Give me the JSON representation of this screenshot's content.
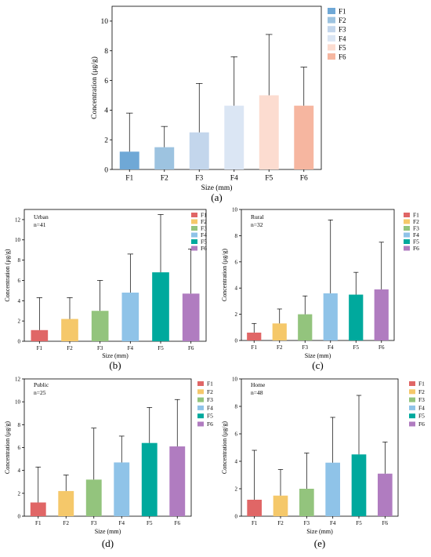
{
  "chart_data": [
    {
      "panel_label": "(a)",
      "type": "bar",
      "categories": [
        "F1",
        "F2",
        "F3",
        "F4",
        "F5",
        "F6"
      ],
      "values": [
        1.2,
        1.5,
        2.5,
        4.3,
        5.0,
        4.3
      ],
      "error_upper": [
        3.8,
        2.9,
        5.8,
        7.6,
        9.1,
        6.9
      ],
      "colors": [
        "#6fa8d6",
        "#9dc3e0",
        "#c3d6ec",
        "#dbe6f4",
        "#fcdcd0",
        "#f6b6a0"
      ],
      "legend": [
        "F1",
        "F2",
        "F3",
        "F4",
        "F5",
        "F6"
      ],
      "legend_position": "top-right",
      "annotation": "",
      "xlabel": "Size (mm)",
      "ylabel": "Concentration (μg/g)",
      "ylim": [
        0,
        11
      ],
      "yticks": [
        0,
        2,
        4,
        6,
        8,
        10
      ]
    },
    {
      "panel_label": "(b)",
      "type": "bar",
      "categories": [
        "F1",
        "F2",
        "F3",
        "F4",
        "F5",
        "F6"
      ],
      "values": [
        1.1,
        2.2,
        3.0,
        4.8,
        6.8,
        4.7
      ],
      "error_upper": [
        4.3,
        4.3,
        6.0,
        8.6,
        12.5,
        9.1
      ],
      "colors": [
        "#e06666",
        "#f5c86a",
        "#93c47d",
        "#8fc3e8",
        "#00a99d",
        "#b07cc0"
      ],
      "legend": [
        "F1",
        "F2",
        "F3",
        "F4",
        "F5",
        "F6"
      ],
      "legend_position": "top-right",
      "annotation": [
        "Urban",
        "n=41"
      ],
      "xlabel": "Size (mm)",
      "ylabel": "Concentration (μg/g)",
      "ylim": [
        0,
        13
      ],
      "yticks": [
        0,
        2,
        4,
        6,
        8,
        10,
        12
      ]
    },
    {
      "panel_label": "(c)",
      "type": "bar",
      "categories": [
        "F1",
        "F2",
        "F3",
        "F4",
        "F5",
        "F6"
      ],
      "values": [
        0.6,
        1.3,
        2.0,
        3.6,
        3.5,
        3.9
      ],
      "error_upper": [
        1.3,
        2.4,
        3.4,
        9.2,
        5.2,
        7.5
      ],
      "colors": [
        "#e06666",
        "#f5c86a",
        "#93c47d",
        "#8fc3e8",
        "#00a99d",
        "#b07cc0"
      ],
      "legend": [
        "F1",
        "F2",
        "F3",
        "F4",
        "F5",
        "F6"
      ],
      "legend_position": "top-right",
      "annotation": [
        "Rural",
        "n=32"
      ],
      "xlabel": "Size (mm)",
      "ylabel": "Concentration (μg/g)",
      "ylim": [
        0,
        10
      ],
      "yticks": [
        0,
        2,
        4,
        6,
        8,
        10
      ]
    },
    {
      "panel_label": "(d)",
      "type": "bar",
      "categories": [
        "F1",
        "F2",
        "F3",
        "F4",
        "F5",
        "F6"
      ],
      "values": [
        1.2,
        2.2,
        3.2,
        4.7,
        6.4,
        6.1
      ],
      "error_upper": [
        4.3,
        3.6,
        7.7,
        7.0,
        9.5,
        10.2
      ],
      "colors": [
        "#e06666",
        "#f5c86a",
        "#93c47d",
        "#8fc3e8",
        "#00a99d",
        "#b07cc0"
      ],
      "legend": [
        "F1",
        "F2",
        "F3",
        "F4",
        "F5",
        "F6"
      ],
      "legend_position": "top-right",
      "annotation": [
        "Public",
        "n=25"
      ],
      "xlabel": "Size (mm)",
      "ylabel": "Concentration (μg/g)",
      "ylim": [
        0,
        12
      ],
      "yticks": [
        0,
        2,
        4,
        6,
        8,
        10,
        12
      ]
    },
    {
      "panel_label": "(e)",
      "type": "bar",
      "categories": [
        "F1",
        "F2",
        "F3",
        "F4",
        "F5",
        "F6"
      ],
      "values": [
        1.2,
        1.5,
        2.0,
        3.9,
        4.5,
        3.1
      ],
      "error_upper": [
        4.8,
        3.4,
        4.6,
        7.2,
        8.8,
        5.4
      ],
      "colors": [
        "#e06666",
        "#f5c86a",
        "#93c47d",
        "#8fc3e8",
        "#00a99d",
        "#b07cc0"
      ],
      "legend": [
        "F1",
        "F2",
        "F3",
        "F4",
        "F5",
        "F6"
      ],
      "legend_position": "top-right",
      "annotation": [
        "Home",
        "n=48"
      ],
      "xlabel": "Size (mm)",
      "ylabel": "Concentration (μg/g)",
      "ylim": [
        0,
        10
      ],
      "yticks": [
        0,
        2,
        4,
        6,
        8,
        10
      ]
    }
  ]
}
